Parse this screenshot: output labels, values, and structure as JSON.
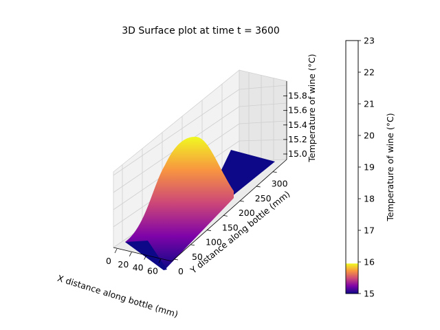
{
  "chart_data": {
    "type": "surface",
    "title": "3D Surface plot at time t = 3600",
    "xlabel": "X distance along bottle (mm)",
    "ylabel": "Y distance along bottle (mm)",
    "zlabel": "Temperature of wine (°C)",
    "x_ticks": [
      "0",
      "20",
      "40",
      "60"
    ],
    "y_ticks": [
      "0",
      "50",
      "100",
      "150",
      "200",
      "250",
      "300"
    ],
    "z_ticks": [
      "15.0",
      "15.2",
      "15.4",
      "15.6",
      "15.8"
    ],
    "xlim": [
      0,
      75
    ],
    "ylim": [
      0,
      330
    ],
    "zlim": [
      15.0,
      15.9
    ],
    "colormap": "plasma",
    "grid": true,
    "surface": {
      "description_values": {
        "baseline": 15.0,
        "peak": 15.95,
        "peak_at_y": 75,
        "peak_width_y": 40,
        "plateau_from_y": 150,
        "plateau_value": 15.0
      },
      "y": [
        0,
        25,
        50,
        75,
        100,
        125,
        150,
        175,
        200,
        250,
        300,
        330
      ],
      "z_profile": [
        15.16,
        15.5,
        15.83,
        15.95,
        15.83,
        15.5,
        15.16,
        15.02,
        15.0,
        15.0,
        15.0,
        15.0
      ]
    },
    "colorbar": {
      "label": "Temperature of wine (°C)",
      "ticks": [
        "15",
        "16",
        "17",
        "18",
        "19",
        "20",
        "21",
        "22",
        "23"
      ],
      "range": [
        15,
        23
      ],
      "filled_range": [
        15,
        15.95
      ]
    }
  }
}
